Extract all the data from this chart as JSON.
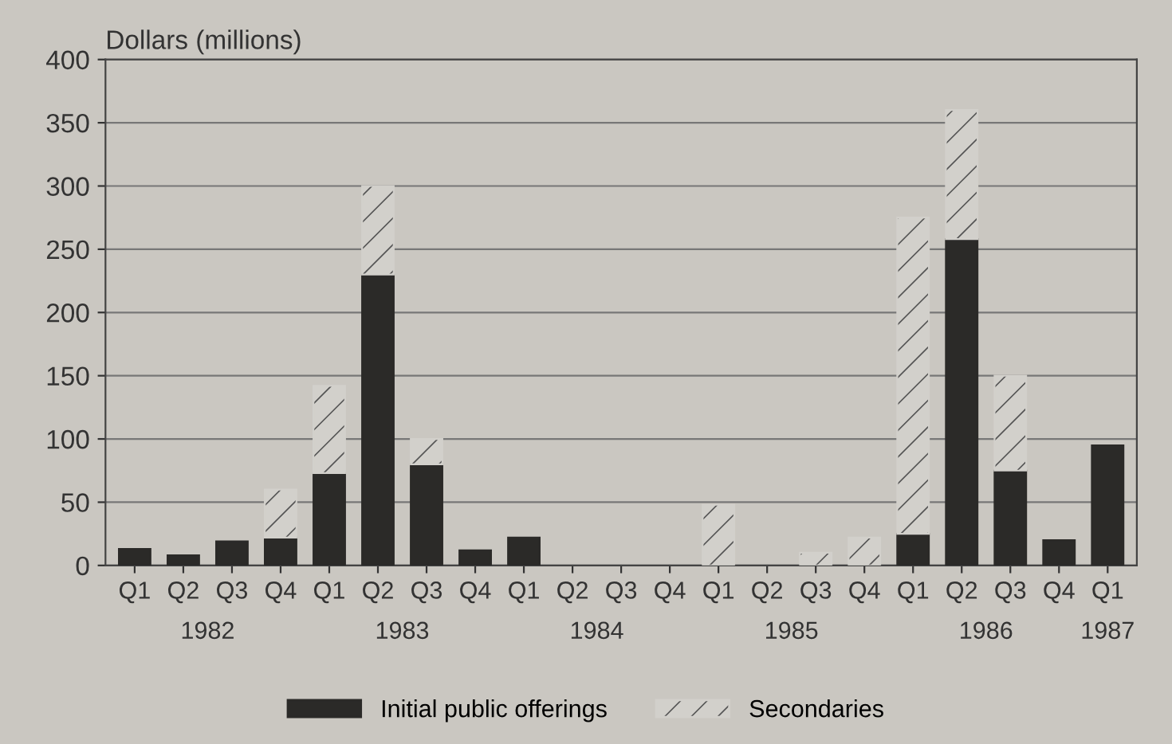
{
  "chart_data": {
    "type": "bar",
    "stacked": true,
    "ylabel": "Dollars (millions)",
    "categories": [
      "Q1",
      "Q2",
      "Q3",
      "Q4",
      "Q1",
      "Q2",
      "Q3",
      "Q4",
      "Q1",
      "Q2",
      "Q3",
      "Q4",
      "Q1",
      "Q2",
      "Q3",
      "Q4",
      "Q1",
      "Q2",
      "Q3",
      "Q4",
      "Q1"
    ],
    "series": [
      {
        "name": "Initial public offerings",
        "color": "#2b2a28",
        "values": [
          13,
          8,
          19,
          22,
          73,
          230,
          80,
          12,
          22,
          0,
          0,
          0,
          0,
          0,
          0,
          0,
          25,
          258,
          75,
          20,
          95
        ]
      },
      {
        "name": "Secondaries",
        "color": "#d2d0cb",
        "values": [
          0,
          0,
          0,
          38,
          69,
          70,
          20,
          0,
          0,
          0,
          0,
          0,
          48,
          0,
          10,
          22,
          250,
          102,
          75,
          0,
          0
        ]
      }
    ],
    "annotations": [
      "1982",
      "1983",
      "1984",
      "1985",
      "1986",
      "1987"
    ],
    "ylim": [
      0,
      400
    ],
    "yticks": [
      0,
      50,
      100,
      150,
      200,
      250,
      300,
      350,
      400
    ],
    "grid": "y",
    "legend": "bottom"
  }
}
